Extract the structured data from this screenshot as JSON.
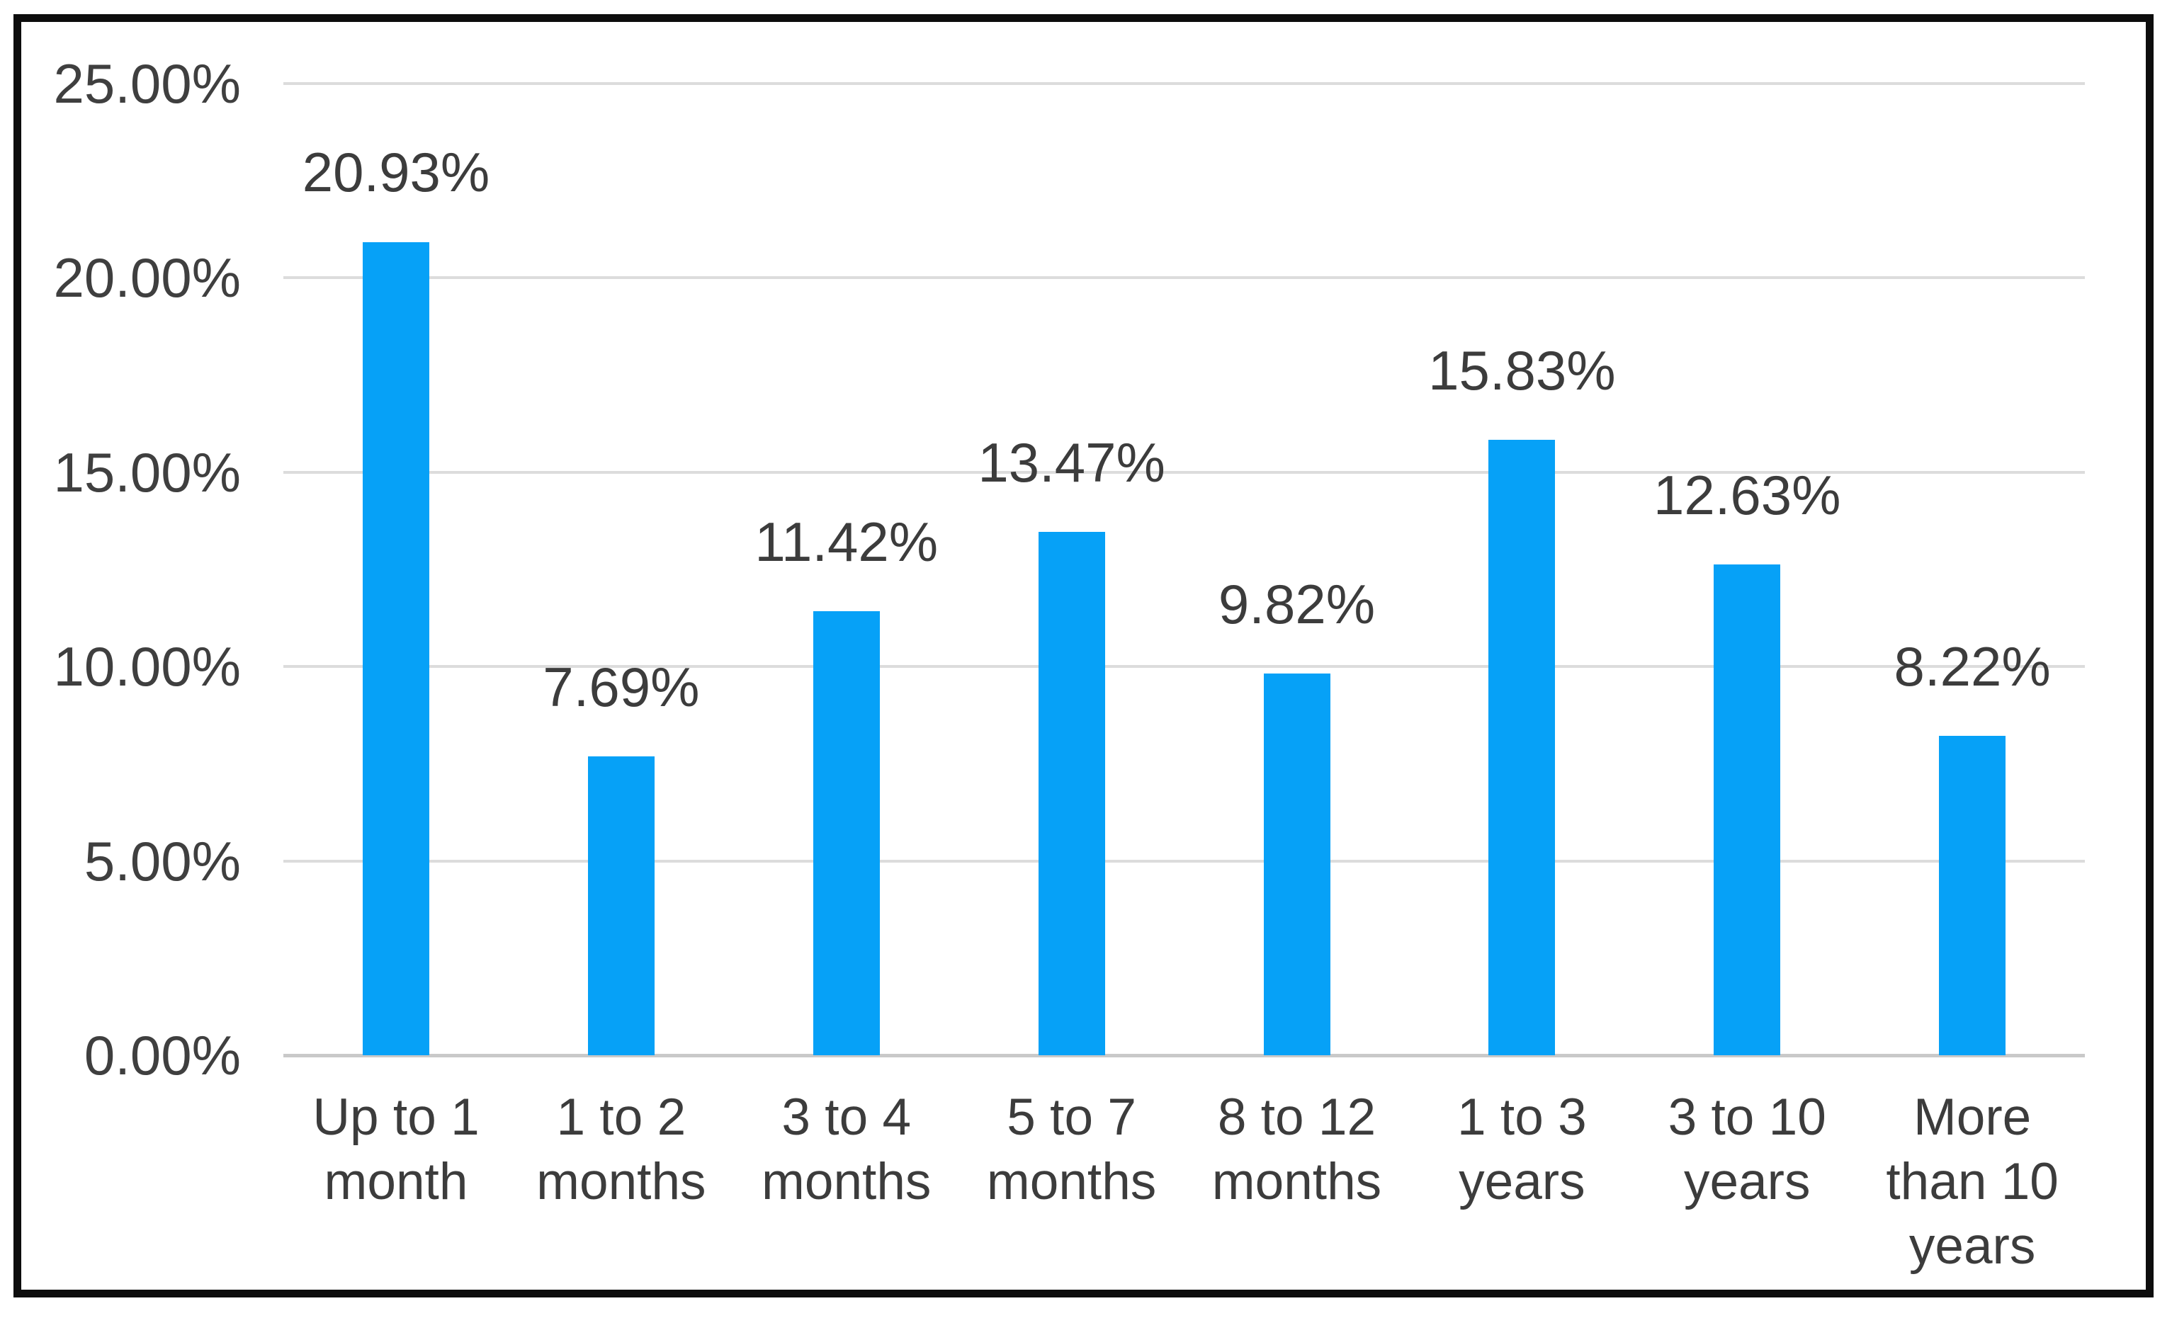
{
  "chart_data": {
    "type": "bar",
    "title": "",
    "xlabel": "",
    "ylabel": "",
    "categories": [
      "Up to 1 month",
      "1 to 2 months",
      "3 to 4 months",
      "5 to 7 months",
      "8 to 12 months",
      "1 to 3 years",
      "3 to 10 years",
      "More than 10 years"
    ],
    "category_label_lines": [
      "Up to 1\nmonth",
      "1 to 2\nmonths",
      "3 to 4\nmonths",
      "5 to 7\nmonths",
      "8 to 12\nmonths",
      "1 to 3\nyears",
      "3 to 10\nyears",
      "More\nthan 10\nyears"
    ],
    "values": [
      20.93,
      7.69,
      11.42,
      13.47,
      9.82,
      15.83,
      12.63,
      8.22
    ],
    "data_labels": [
      "20.93%",
      "7.69%",
      "11.42%",
      "13.47%",
      "9.82%",
      "15.83%",
      "12.63%",
      "8.22%"
    ],
    "ylim": [
      0,
      25
    ],
    "ytick_step": 5,
    "ytick_labels": [
      "25.00%",
      "20.00%",
      "15.00%",
      "10.00%",
      "5.00%",
      "0.00%"
    ],
    "grid": true,
    "legend_position": "none",
    "bar_color": "#06a1f7",
    "text_color": "#3c3c3c",
    "gridline_color": "#dcdcdc",
    "frame_border_color": "#0d0d0d"
  }
}
